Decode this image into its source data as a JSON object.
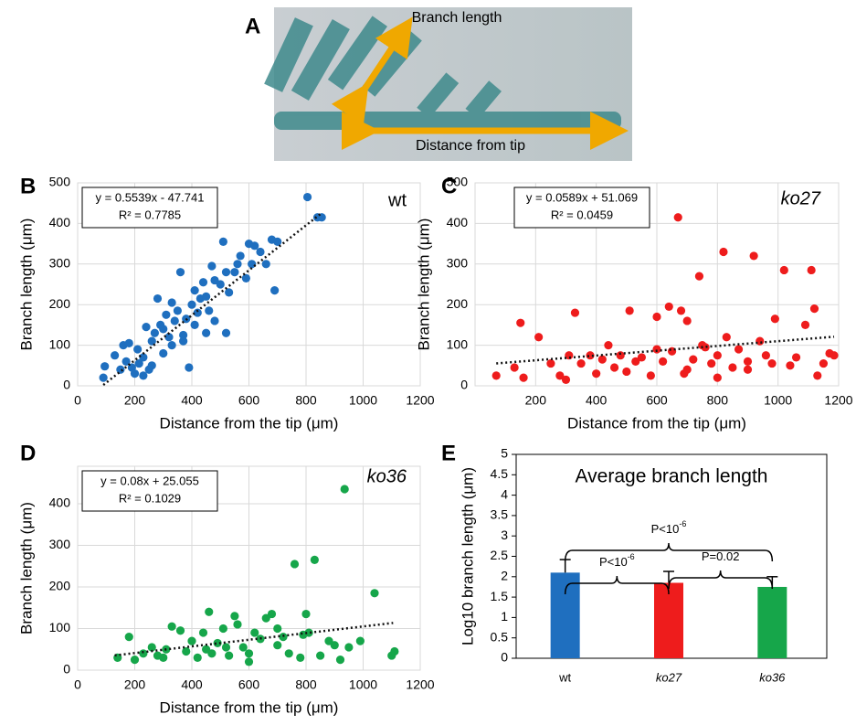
{
  "panel_a": {
    "label": "A",
    "annotations": [
      "Branch length",
      "Distance from tip"
    ]
  },
  "chart_data": [
    {
      "type": "scatter",
      "panel_label": "B",
      "series_name": "wt",
      "color": "#1f6fbf",
      "equation": "y = 0.5539x - 47.741",
      "r_squared": "R² = 0.7785",
      "trendline": {
        "slope": 0.5539,
        "intercept": -47.741,
        "x_range": [
          90,
          850
        ]
      },
      "x_label": "Distance from the tip (μm)",
      "y_label": "Branch length (μm)",
      "xlim": [
        0,
        1200
      ],
      "xticks": [
        0,
        200,
        400,
        600,
        800,
        1000,
        1200
      ],
      "ylim": [
        0,
        500
      ],
      "yticks": [
        0,
        100,
        200,
        300,
        400,
        500
      ],
      "grid": true,
      "x": [
        90,
        95,
        130,
        150,
        160,
        170,
        180,
        190,
        200,
        210,
        215,
        230,
        240,
        250,
        260,
        270,
        280,
        290,
        300,
        310,
        320,
        330,
        340,
        350,
        360,
        370,
        380,
        390,
        400,
        410,
        420,
        430,
        440,
        450,
        460,
        470,
        480,
        500,
        510,
        520,
        530,
        550,
        570,
        590,
        600,
        610,
        620,
        640,
        660,
        680,
        690,
        700,
        805,
        840,
        855,
        300,
        330,
        370,
        410,
        450,
        480,
        520,
        560,
        230,
        260
      ],
      "y": [
        20,
        48,
        75,
        40,
        100,
        60,
        105,
        45,
        30,
        90,
        55,
        70,
        145,
        40,
        110,
        130,
        215,
        150,
        80,
        175,
        120,
        205,
        160,
        185,
        280,
        125,
        165,
        45,
        200,
        235,
        180,
        215,
        255,
        220,
        185,
        295,
        160,
        250,
        355,
        280,
        230,
        280,
        320,
        265,
        350,
        300,
        345,
        330,
        300,
        360,
        235,
        355,
        465,
        415,
        415,
        140,
        100,
        110,
        150,
        130,
        260,
        130,
        300,
        25,
        50
      ]
    },
    {
      "type": "scatter",
      "panel_label": "C",
      "series_name": "ko27",
      "color": "#ee1c1c",
      "equation": "y = 0.0589x + 51.069",
      "r_squared": "R² = 0.0459",
      "trendline": {
        "slope": 0.0589,
        "intercept": 51.069,
        "x_range": [
          70,
          1185
        ]
      },
      "x_label": "Distance from the tip (μm)",
      "y_label": "Branch length (μm)",
      "xlim": [
        0,
        1200
      ],
      "xticks": [
        200,
        400,
        600,
        800,
        1000,
        1200
      ],
      "ylim": [
        0,
        500
      ],
      "yticks": [
        0,
        100,
        200,
        300,
        400,
        500
      ],
      "grid": true,
      "x": [
        70,
        130,
        150,
        160,
        210,
        250,
        280,
        300,
        310,
        330,
        350,
        380,
        400,
        420,
        440,
        460,
        480,
        500,
        510,
        530,
        550,
        580,
        600,
        620,
        640,
        650,
        670,
        680,
        690,
        700,
        720,
        740,
        760,
        780,
        800,
        820,
        830,
        850,
        870,
        900,
        920,
        940,
        960,
        980,
        990,
        1020,
        1040,
        1060,
        1090,
        1110,
        1120,
        1130,
        1150,
        1170,
        1185,
        600,
        700,
        750,
        800,
        900
      ],
      "y": [
        25,
        45,
        155,
        20,
        120,
        55,
        25,
        15,
        75,
        180,
        55,
        75,
        30,
        65,
        100,
        45,
        75,
        35,
        185,
        60,
        70,
        25,
        170,
        60,
        195,
        85,
        415,
        185,
        30,
        160,
        65,
        270,
        95,
        55,
        75,
        330,
        120,
        45,
        90,
        60,
        320,
        110,
        75,
        55,
        165,
        285,
        50,
        70,
        150,
        285,
        190,
        25,
        55,
        80,
        75,
        90,
        40,
        100,
        20,
        40
      ]
    },
    {
      "type": "scatter",
      "panel_label": "D",
      "series_name": "ko36",
      "color": "#16a64a",
      "equation": "y = 0.08x + 25.055",
      "r_squared": "R² = 0.1029",
      "trendline": {
        "slope": 0.08,
        "intercept": 25.055,
        "x_range": [
          130,
          1105
        ]
      },
      "x_label": "Distance from the tip (μm)",
      "y_label": "Branch length (μm)",
      "xlim": [
        0,
        1200
      ],
      "xticks": [
        0,
        200,
        400,
        600,
        800,
        1000,
        1200
      ],
      "ylim": [
        0,
        490
      ],
      "yticks": [
        0,
        100,
        200,
        300,
        400
      ],
      "grid": true,
      "x": [
        140,
        180,
        200,
        230,
        260,
        280,
        310,
        330,
        360,
        380,
        400,
        420,
        440,
        460,
        470,
        490,
        510,
        530,
        550,
        560,
        580,
        600,
        620,
        640,
        660,
        680,
        700,
        720,
        740,
        760,
        780,
        790,
        800,
        810,
        830,
        850,
        880,
        900,
        920,
        935,
        950,
        990,
        1040,
        1100,
        1110,
        300,
        450,
        520,
        600,
        700
      ],
      "y": [
        30,
        80,
        25,
        40,
        55,
        35,
        50,
        105,
        95,
        45,
        70,
        30,
        90,
        140,
        40,
        65,
        100,
        35,
        130,
        110,
        55,
        20,
        90,
        75,
        125,
        135,
        60,
        80,
        40,
        255,
        30,
        85,
        135,
        90,
        265,
        35,
        70,
        60,
        25,
        435,
        55,
        70,
        185,
        35,
        45,
        30,
        50,
        55,
        40,
        100
      ]
    },
    {
      "type": "bar",
      "panel_label": "E",
      "title": "Average branch length",
      "y_label": "Log10 branch length (μm)",
      "categories": [
        "wt",
        "ko27",
        "ko36"
      ],
      "values": [
        2.1,
        1.85,
        1.75
      ],
      "errors": [
        0.32,
        0.28,
        0.25
      ],
      "colors": [
        "#1f6fbf",
        "#ee1c1c",
        "#16a64a"
      ],
      "ylim": [
        0,
        5
      ],
      "yticks": [
        0,
        0.5,
        1,
        1.5,
        2,
        2.5,
        3,
        3.5,
        4,
        4.5,
        5
      ],
      "annotations": [
        {
          "text": "P<10",
          "sup": "-6"
        },
        {
          "text": "P=0.02"
        },
        {
          "text": "P<10",
          "sup": "-6"
        }
      ]
    }
  ]
}
